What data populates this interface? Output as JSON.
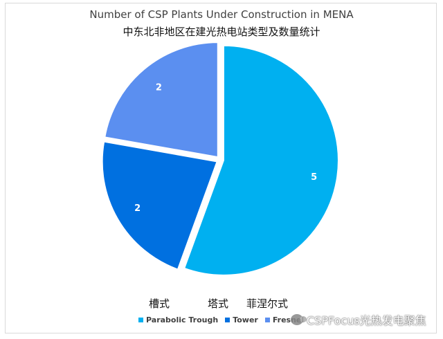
{
  "chart_data": {
    "type": "pie",
    "title": "Number of CSP Plants Under Construction in MENA",
    "subtitle": "中东北非地区在建光热电站类型及数量统计",
    "categories": [
      "Parabolic Trough",
      "Tower",
      "Fresnel"
    ],
    "values": [
      5,
      2,
      2
    ],
    "colors": [
      "#00b0f0",
      "#0070e0",
      "#5b8ff0"
    ],
    "data_labels": [
      "5",
      "2",
      "2"
    ],
    "legend_placement": "bottom",
    "legend_labels": [
      "Parabolic Trough",
      "Tower",
      "Fresnel"
    ],
    "legend_labels_zh": [
      "槽式",
      "塔式",
      "菲涅尔式"
    ],
    "start_angle_deg": 0,
    "direction": "clockwise",
    "exploded": true
  },
  "watermark": {
    "text": "CSPFocus光热发电聚焦",
    "icon": "wechat-icon"
  }
}
